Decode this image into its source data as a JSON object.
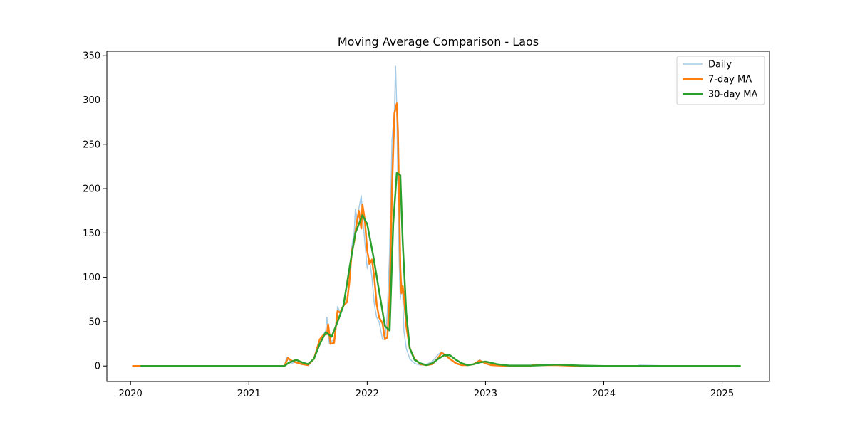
{
  "chart_data": {
    "type": "line",
    "title": "Moving Average Comparison - Laos",
    "xlabel": "",
    "ylabel": "",
    "xlim": [
      2019.8,
      2025.4
    ],
    "ylim": [
      -17.5,
      355
    ],
    "x_ticks": [
      2020,
      2021,
      2022,
      2023,
      2024,
      2025
    ],
    "x_tick_labels": [
      "2020",
      "2021",
      "2022",
      "2023",
      "2024",
      "2025"
    ],
    "y_ticks": [
      0,
      50,
      100,
      150,
      200,
      250,
      300,
      350
    ],
    "y_tick_labels": [
      "0",
      "50",
      "100",
      "150",
      "200",
      "250",
      "300",
      "350"
    ],
    "grid": false,
    "legend_position": "top-right",
    "series": [
      {
        "name": "Daily",
        "color": "#a6cbe6",
        "width": 1.5,
        "x": [
          2020.02,
          2020.5,
          2021.0,
          2021.3,
          2021.32,
          2021.34,
          2021.36,
          2021.4,
          2021.45,
          2021.5,
          2021.55,
          2021.6,
          2021.63,
          2021.65,
          2021.66,
          2021.68,
          2021.7,
          2021.73,
          2021.75,
          2021.77,
          2021.8,
          2021.83,
          2021.85,
          2021.87,
          2021.89,
          2021.9,
          2021.91,
          2021.92,
          2021.93,
          2021.95,
          2021.96,
          2021.98,
          2022.0,
          2022.02,
          2022.04,
          2022.06,
          2022.08,
          2022.1,
          2022.13,
          2022.15,
          2022.17,
          2022.19,
          2022.21,
          2022.23,
          2022.24,
          2022.25,
          2022.26,
          2022.27,
          2022.28,
          2022.29,
          2022.3,
          2022.31,
          2022.33,
          2022.36,
          2022.4,
          2022.45,
          2022.5,
          2022.55,
          2022.6,
          2022.63,
          2022.66,
          2022.7,
          2022.75,
          2022.8,
          2022.85,
          2022.9,
          2022.95,
          2022.97,
          2023.0,
          2023.05,
          2023.2,
          2023.38,
          2023.4,
          2023.5,
          2023.6,
          2023.8,
          2024.0,
          2024.29,
          2024.3,
          2024.6,
          2025.15
        ],
        "y": [
          0,
          0,
          0,
          0,
          10,
          7,
          3,
          5,
          2,
          1,
          8,
          30,
          35,
          40,
          55,
          25,
          28,
          30,
          67,
          60,
          70,
          72,
          100,
          135,
          150,
          177,
          170,
          160,
          178,
          192,
          170,
          140,
          110,
          120,
          100,
          70,
          55,
          50,
          30,
          30,
          60,
          130,
          255,
          288,
          338,
          290,
          200,
          120,
          75,
          95,
          80,
          40,
          20,
          8,
          3,
          1,
          2,
          5,
          13,
          16,
          12,
          8,
          3,
          2,
          1,
          2,
          7,
          5,
          3,
          1,
          0,
          0,
          2,
          1,
          1,
          0,
          0,
          0,
          1,
          0,
          0
        ]
      },
      {
        "name": "7-day MA",
        "color": "#ff7f0e",
        "width": 2.5,
        "x": [
          2020.02,
          2020.5,
          2021.0,
          2021.3,
          2021.33,
          2021.36,
          2021.4,
          2021.45,
          2021.5,
          2021.55,
          2021.6,
          2021.63,
          2021.66,
          2021.67,
          2021.69,
          2021.72,
          2021.75,
          2021.77,
          2021.8,
          2021.83,
          2021.85,
          2021.87,
          2021.89,
          2021.91,
          2021.93,
          2021.95,
          2021.96,
          2021.98,
          2022.0,
          2022.02,
          2022.04,
          2022.06,
          2022.08,
          2022.1,
          2022.13,
          2022.15,
          2022.17,
          2022.19,
          2022.21,
          2022.23,
          2022.25,
          2022.26,
          2022.27,
          2022.28,
          2022.29,
          2022.3,
          2022.31,
          2022.33,
          2022.36,
          2022.4,
          2022.45,
          2022.5,
          2022.55,
          2022.6,
          2022.63,
          2022.66,
          2022.7,
          2022.75,
          2022.8,
          2022.85,
          2022.9,
          2022.95,
          2022.97,
          2023.0,
          2023.05,
          2023.2,
          2023.38,
          2023.4,
          2023.5,
          2023.6,
          2023.8,
          2024.0,
          2024.3,
          2024.6,
          2025.15
        ],
        "y": [
          0,
          0,
          0,
          0,
          9,
          6,
          4,
          2,
          1,
          8,
          30,
          35,
          36,
          47,
          25,
          26,
          62,
          60,
          68,
          72,
          95,
          130,
          140,
          160,
          175,
          155,
          182,
          165,
          130,
          115,
          120,
          100,
          70,
          55,
          48,
          30,
          32,
          80,
          200,
          285,
          296,
          265,
          190,
          110,
          82,
          90,
          80,
          45,
          20,
          8,
          2,
          1,
          2,
          9,
          15,
          12,
          8,
          3,
          1,
          1,
          2,
          6,
          5,
          3,
          1,
          0,
          0,
          1,
          1,
          1,
          0,
          0,
          0,
          0,
          0
        ]
      },
      {
        "name": "30-day MA",
        "color": "#2ca02c",
        "width": 2.5,
        "x": [
          2020.09,
          2020.5,
          2021.0,
          2021.3,
          2021.33,
          2021.36,
          2021.4,
          2021.45,
          2021.5,
          2021.55,
          2021.6,
          2021.65,
          2021.7,
          2021.75,
          2021.8,
          2021.85,
          2021.9,
          2021.93,
          2021.96,
          2021.98,
          2022.0,
          2022.05,
          2022.1,
          2022.15,
          2022.19,
          2022.22,
          2022.25,
          2022.28,
          2022.3,
          2022.33,
          2022.36,
          2022.4,
          2022.45,
          2022.5,
          2022.55,
          2022.6,
          2022.65,
          2022.7,
          2022.75,
          2022.8,
          2022.85,
          2022.9,
          2022.95,
          2023.0,
          2023.1,
          2023.2,
          2023.4,
          2023.6,
          2023.8,
          2024.0,
          2024.5,
          2025.15
        ],
        "y": [
          0,
          0,
          0,
          0,
          3,
          5,
          7,
          4,
          2,
          8,
          25,
          38,
          33,
          50,
          68,
          110,
          150,
          160,
          170,
          165,
          160,
          125,
          85,
          45,
          40,
          160,
          218,
          215,
          140,
          60,
          20,
          7,
          3,
          1,
          3,
          8,
          12,
          12,
          7,
          3,
          1,
          2,
          4,
          5,
          2,
          0.5,
          0.5,
          1.5,
          0.5,
          0,
          0,
          0
        ]
      }
    ]
  }
}
